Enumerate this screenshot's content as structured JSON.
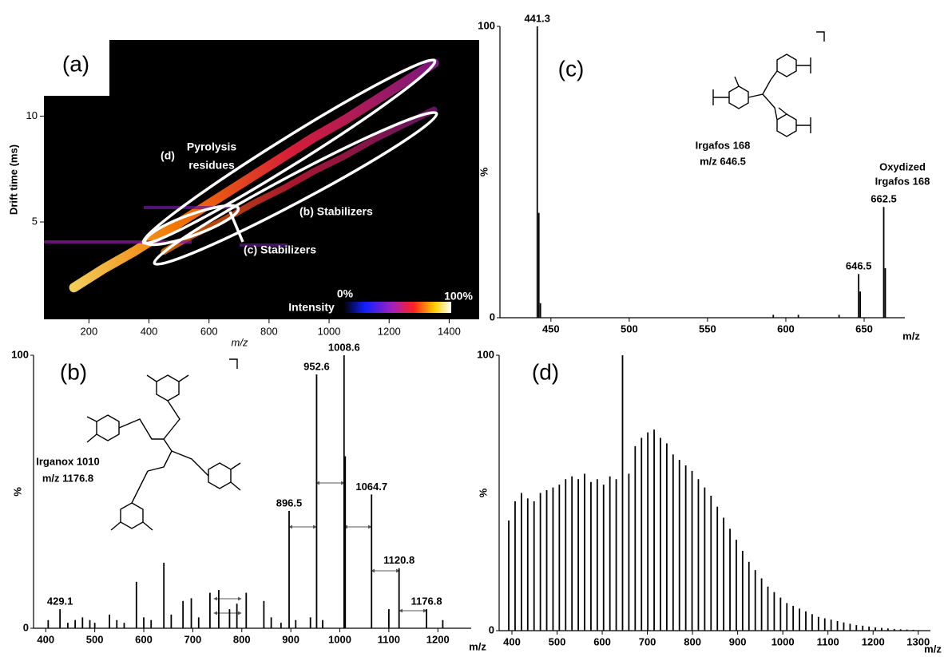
{
  "chart_data": [
    {
      "type": "heatmap",
      "panel_label": "(a)",
      "x_label": "m/z",
      "y_label": "Drift time (ms)",
      "xlim": [
        50,
        1500
      ],
      "ylim": [
        0.4,
        13.6
      ],
      "xticks": [
        200,
        400,
        600,
        800,
        1000,
        1200,
        1400
      ],
      "yticks": [
        5,
        10
      ],
      "annotations": [
        "(d)",
        "Pyrolysis",
        "residues",
        "(b) Stabilizers",
        "(c) Stabilizers"
      ],
      "colorbar": {
        "title": "Intensity",
        "min_label": "0%",
        "max_label": "100%"
      },
      "series": [
        {
          "x": [
            150,
            250,
            350,
            450,
            550,
            650,
            750,
            850,
            950,
            1050,
            1150,
            1250,
            1350
          ],
          "y": [
            1.9,
            2.8,
            3.6,
            4.5,
            5.4,
            6.3,
            7.2,
            8.1,
            9.0,
            9.8,
            10.7,
            11.6,
            12.5
          ]
        },
        {
          "x": [
            450,
            550,
            650,
            750,
            850,
            950,
            1050,
            1150,
            1250,
            1350
          ],
          "y": [
            3.6,
            4.4,
            5.1,
            5.9,
            6.6,
            7.4,
            8.1,
            8.9,
            9.6,
            10.3
          ]
        }
      ]
    },
    {
      "type": "spectrum",
      "panel_label": "(b)",
      "x_label": "m/z",
      "y_label": "%",
      "xlim": [
        380,
        1268
      ],
      "ylim": [
        0,
        100
      ],
      "xticks": [
        400,
        500,
        600,
        700,
        800,
        900,
        1000,
        1100,
        1200
      ],
      "yticks": [
        0,
        100
      ],
      "annotations": [
        "Irganox 1010",
        "m/z 1176.8"
      ],
      "series": [
        {
          "color": "#000000",
          "x": [
            405,
            445,
            460,
            475,
            490,
            500,
            530,
            545,
            560,
            585,
            600,
            615,
            641,
            656,
            680,
            697,
            712,
            735,
            753,
            775,
            790,
            809,
            845,
            860,
            880,
            910,
            940,
            965,
            1011,
            1100,
            1210
          ],
          "values": [
            3,
            2,
            3,
            4,
            3,
            2,
            5,
            3,
            2,
            17,
            4,
            3,
            24,
            5,
            10,
            11,
            4,
            13,
            14,
            7,
            9,
            13,
            10,
            4,
            2,
            3,
            4,
            3,
            63,
            7,
            3
          ]
        },
        {
          "color": "#000000",
          "labeled": true,
          "x": [
            429.1,
            896.5,
            952.6,
            1008.6,
            1064.7,
            1120.8,
            1176.8
          ],
          "values": [
            7,
            43,
            93,
            100,
            49,
            22,
            7
          ]
        }
      ]
    },
    {
      "type": "spectrum",
      "panel_label": "(c)",
      "x_label": "m/z",
      "y_label": "%",
      "xlim": [
        419,
        676
      ],
      "ylim": [
        0,
        100
      ],
      "xticks": [
        450,
        500,
        550,
        600,
        650
      ],
      "yticks": [
        0,
        100
      ],
      "annotations": [
        "Irgafos 168",
        "m/z 646.5",
        "Oxydized",
        "Irgafos 168"
      ],
      "series": [
        {
          "color": "#000000",
          "x": [
            442.3,
            443.3,
            592,
            608,
            634,
            647.5,
            663.5
          ],
          "values": [
            36,
            5,
            1,
            1,
            1,
            9,
            17
          ]
        },
        {
          "color": "#000000",
          "labeled": true,
          "x": [
            441.3,
            646.5,
            662.5
          ],
          "values": [
            100,
            15,
            38
          ]
        }
      ]
    },
    {
      "type": "spectrum",
      "panel_label": "(d)",
      "x_label": "m/z",
      "y_label": "%",
      "xlim": [
        377,
        1327
      ],
      "ylim": [
        0,
        100
      ],
      "xticks": [
        400,
        500,
        600,
        700,
        800,
        900,
        1000,
        1100,
        1200,
        1300
      ],
      "yticks": [
        0,
        100
      ],
      "annotations": [],
      "series": [
        {
          "color": "#000000",
          "x": [
            393,
            407,
            421,
            435,
            449,
            463,
            477,
            491,
            505,
            519,
            533,
            547,
            561,
            575,
            589,
            603,
            617,
            631,
            645,
            659,
            673,
            687,
            701,
            715,
            729,
            743,
            757,
            771,
            785,
            799,
            813,
            827,
            841,
            855,
            869,
            883,
            897,
            911,
            925,
            939,
            953,
            967,
            981,
            995,
            1009,
            1023,
            1037,
            1051,
            1065,
            1079,
            1093,
            1107,
            1121,
            1135,
            1149,
            1163,
            1177,
            1191,
            1205,
            1219,
            1233,
            1247,
            1261,
            1275,
            1289
          ],
          "values": [
            40,
            47,
            50,
            48,
            47,
            50,
            51,
            52,
            53,
            55,
            56,
            55,
            57,
            54,
            55,
            53,
            56,
            55,
            100,
            57,
            67,
            70,
            72,
            73,
            70,
            68,
            64,
            62,
            60,
            58,
            55,
            52,
            49,
            45,
            41,
            37,
            33,
            29,
            25,
            22,
            19,
            16,
            14,
            12,
            10,
            9,
            8,
            7,
            6,
            5,
            4.5,
            4,
            3.5,
            3,
            2.5,
            2,
            1.8,
            1.5,
            1.2,
            1,
            0.8,
            0.6,
            0.5,
            0.4,
            0.3
          ]
        }
      ]
    }
  ]
}
